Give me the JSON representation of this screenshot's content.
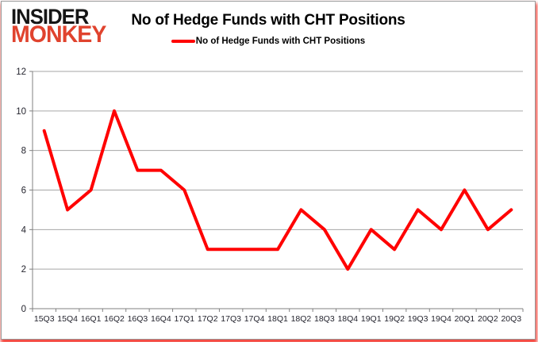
{
  "logo": {
    "line1": "INSIDER",
    "line2": "MONKEY"
  },
  "header": {
    "title": "No of Hedge Funds with CHT Positions"
  },
  "legend": {
    "label": "No of Hedge Funds with CHT Positions"
  },
  "colors": {
    "series_red": "#ff0000",
    "logo_red": "#e0432e",
    "gridline_gray": "#a6a6a6",
    "axis_gray": "#808080",
    "frame_glow_red": "#f0190f"
  },
  "chart_data": {
    "type": "line",
    "title": "No of Hedge Funds with CHT Positions",
    "series": [
      {
        "name": "No of Hedge Funds with CHT Positions",
        "values": [
          9,
          5,
          6,
          10,
          7,
          7,
          6,
          3,
          3,
          3,
          3,
          5,
          4,
          2,
          4,
          3,
          5,
          4,
          6,
          4,
          5
        ],
        "color": "#ff0000"
      }
    ],
    "categories": [
      "15Q3",
      "15Q4",
      "16Q1",
      "16Q2",
      "16Q3",
      "16Q4",
      "17Q1",
      "17Q2",
      "17Q3",
      "17Q4",
      "18Q1",
      "18Q2",
      "18Q3",
      "18Q4",
      "19Q1",
      "19Q2",
      "19Q3",
      "19Q4",
      "20Q1",
      "20Q2",
      "20Q3"
    ],
    "xlabel": "",
    "ylabel": "",
    "ylim": [
      0,
      12
    ],
    "ytick_step": 2,
    "grid": true,
    "legend_position": "top-center"
  }
}
